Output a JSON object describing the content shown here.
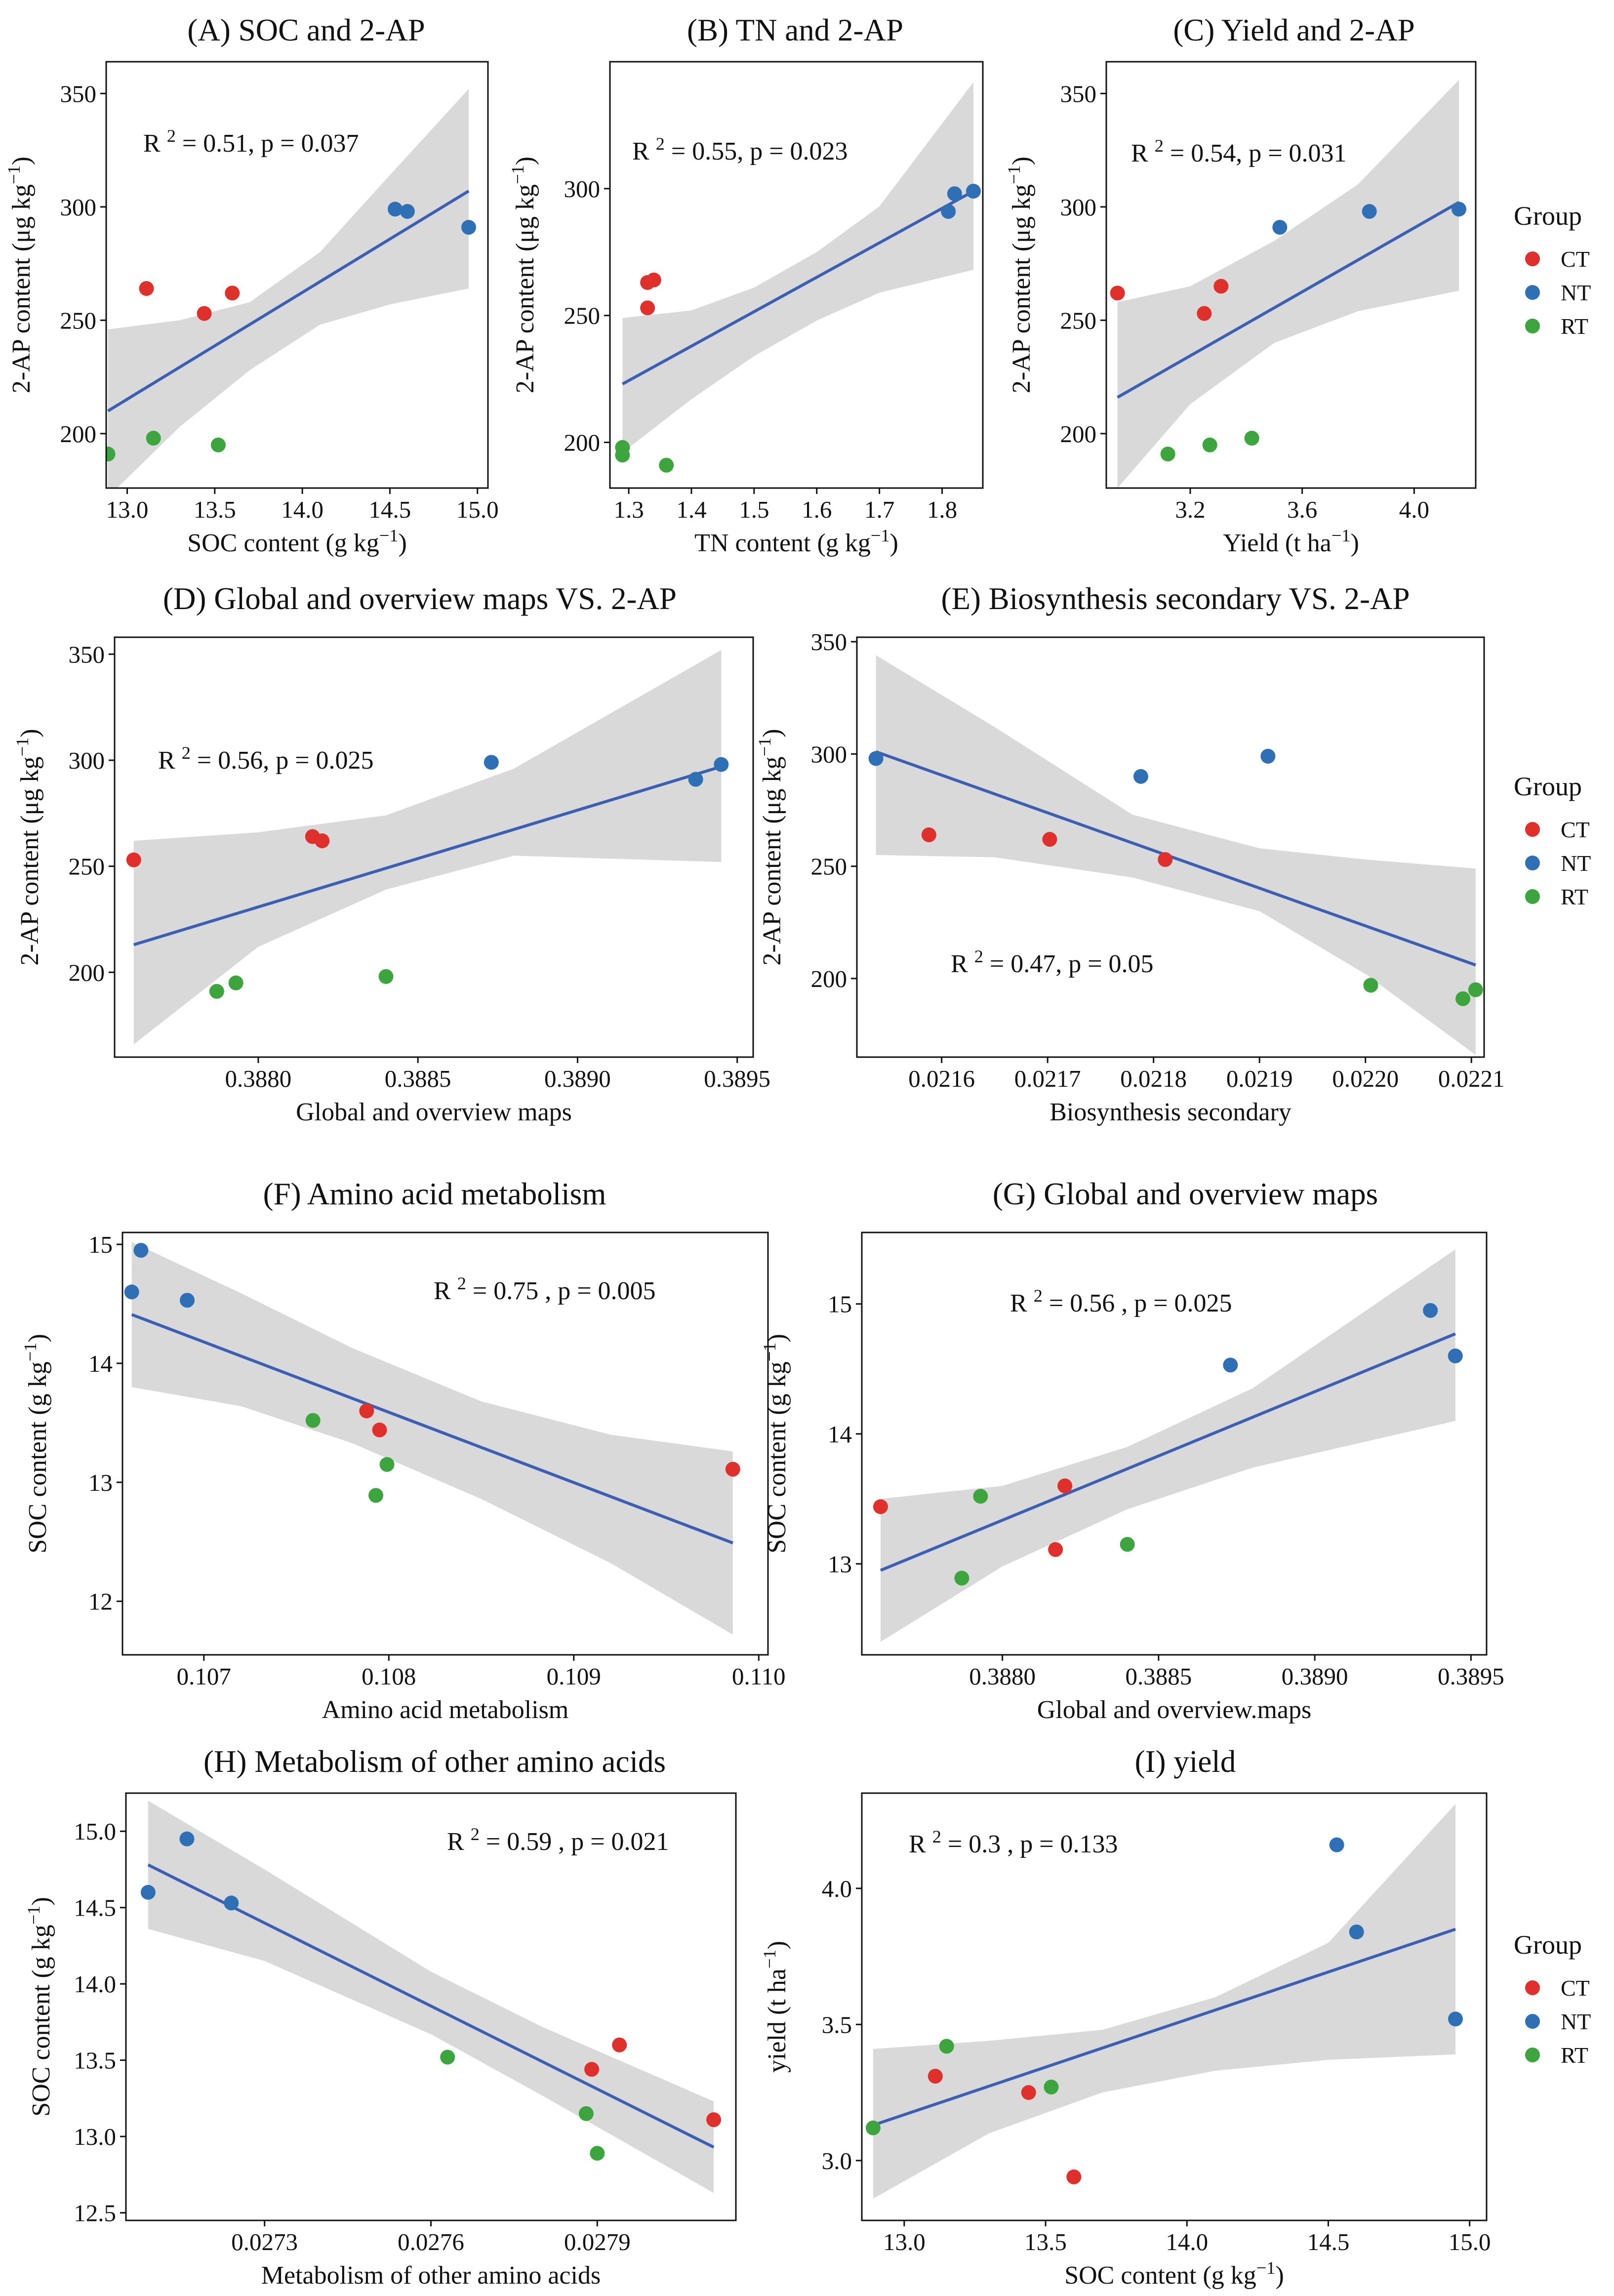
{
  "legend": {
    "title": "Group",
    "entries": [
      {
        "key": "CT",
        "label": "CT",
        "color": "#e0302b"
      },
      {
        "key": "NT",
        "label": "NT",
        "color": "#2f6fb5"
      },
      {
        "key": "RT",
        "label": "RT",
        "color": "#3da53d"
      }
    ]
  },
  "style": {
    "band_color": "#d9d9d9",
    "line_color": "#3b5fb4",
    "frame_color": "#111111"
  },
  "chart_data": [
    {
      "id": "A",
      "type": "scatter",
      "title": "(A) SOC and 2-AP",
      "xlabel": "SOC content (g kg⁻¹)",
      "ylabel": "2-AP content (μg kg⁻¹)",
      "xlim": [
        12.88,
        15.06
      ],
      "ylim": [
        176,
        364
      ],
      "xticks": [
        13.0,
        13.5,
        14.0,
        14.5,
        15.0
      ],
      "xtick_labels": [
        "13.0",
        "13.5",
        "14.0",
        "14.5",
        "15.0"
      ],
      "yticks": [
        200,
        250,
        300,
        350
      ],
      "ytick_labels": [
        "200",
        "250",
        "300",
        "350"
      ],
      "stats": "R² = 0.51,  p = 0.037",
      "points": [
        {
          "x": 13.11,
          "y": 264,
          "group": "CT"
        },
        {
          "x": 13.44,
          "y": 253,
          "group": "CT"
        },
        {
          "x": 13.6,
          "y": 262,
          "group": "CT"
        },
        {
          "x": 14.53,
          "y": 299,
          "group": "NT"
        },
        {
          "x": 14.6,
          "y": 298,
          "group": "NT"
        },
        {
          "x": 14.95,
          "y": 291,
          "group": "NT"
        },
        {
          "x": 12.89,
          "y": 191,
          "group": "RT"
        },
        {
          "x": 13.15,
          "y": 198,
          "group": "RT"
        },
        {
          "x": 13.52,
          "y": 195,
          "group": "RT"
        }
      ],
      "fit": {
        "x": [
          12.89,
          14.95
        ],
        "y": [
          210,
          307
        ]
      },
      "band": {
        "x": [
          12.89,
          13.3,
          13.7,
          14.1,
          14.5,
          14.95
        ],
        "lower": [
          172,
          203,
          228,
          248,
          257,
          264
        ],
        "upper": [
          246,
          250,
          258,
          280,
          314,
          352
        ]
      }
    },
    {
      "id": "B",
      "type": "scatter",
      "title": "(B) TN and 2-AP",
      "xlabel": "TN content (g kg⁻¹)",
      "ylabel": "2-AP content (μg kg⁻¹)",
      "xlim": [
        1.27,
        1.865
      ],
      "ylim": [
        182,
        350
      ],
      "xticks": [
        1.3,
        1.4,
        1.5,
        1.6,
        1.7,
        1.8
      ],
      "xtick_labels": [
        "1.3",
        "1.4",
        "1.5",
        "1.6",
        "1.7",
        "1.8"
      ],
      "yticks": [
        200,
        250,
        300
      ],
      "ytick_labels": [
        "200",
        "250",
        "300"
      ],
      "stats": "R² = 0.55,  p = 0.023",
      "points": [
        {
          "x": 1.33,
          "y": 263,
          "group": "CT"
        },
        {
          "x": 1.34,
          "y": 264,
          "group": "CT"
        },
        {
          "x": 1.33,
          "y": 253,
          "group": "CT"
        },
        {
          "x": 1.82,
          "y": 298,
          "group": "NT"
        },
        {
          "x": 1.81,
          "y": 291,
          "group": "NT"
        },
        {
          "x": 1.85,
          "y": 299,
          "group": "NT"
        },
        {
          "x": 1.29,
          "y": 198,
          "group": "RT"
        },
        {
          "x": 1.29,
          "y": 195,
          "group": "RT"
        },
        {
          "x": 1.36,
          "y": 191,
          "group": "RT"
        }
      ],
      "fit": {
        "x": [
          1.29,
          1.85
        ],
        "y": [
          223,
          299
        ]
      },
      "band": {
        "x": [
          1.29,
          1.4,
          1.5,
          1.6,
          1.7,
          1.85
        ],
        "lower": [
          196,
          217,
          234,
          248,
          259,
          268
        ],
        "upper": [
          249,
          252,
          261,
          275,
          293,
          342
        ]
      }
    },
    {
      "id": "C",
      "type": "scatter",
      "title": "(C) Yield and 2-AP",
      "xlabel": "Yield (t ha⁻¹)",
      "ylabel": "2-AP content (μg kg⁻¹)",
      "xlim": [
        2.9,
        4.22
      ],
      "ylim": [
        176,
        364
      ],
      "xticks": [
        3.2,
        3.6,
        4.0
      ],
      "xtick_labels": [
        "3.2",
        "3.6",
        "4.0"
      ],
      "yticks": [
        200,
        250,
        300,
        350
      ],
      "ytick_labels": [
        "200",
        "250",
        "300",
        "350"
      ],
      "stats": "R² = 0.54,  p = 0.031",
      "points": [
        {
          "x": 2.94,
          "y": 262,
          "group": "CT"
        },
        {
          "x": 3.25,
          "y": 253,
          "group": "CT"
        },
        {
          "x": 3.31,
          "y": 265,
          "group": "CT"
        },
        {
          "x": 3.52,
          "y": 291,
          "group": "NT"
        },
        {
          "x": 3.84,
          "y": 298,
          "group": "NT"
        },
        {
          "x": 4.16,
          "y": 299,
          "group": "NT"
        },
        {
          "x": 3.12,
          "y": 191,
          "group": "RT"
        },
        {
          "x": 3.27,
          "y": 195,
          "group": "RT"
        },
        {
          "x": 3.42,
          "y": 198,
          "group": "RT"
        }
      ],
      "fit": {
        "x": [
          2.94,
          4.16
        ],
        "y": [
          216,
          302
        ]
      },
      "band": {
        "x": [
          2.94,
          3.2,
          3.5,
          3.8,
          4.16
        ],
        "lower": [
          176,
          213,
          240,
          254,
          263
        ],
        "upper": [
          258,
          265,
          285,
          310,
          356
        ]
      }
    },
    {
      "id": "D",
      "type": "scatter",
      "title": "(D) Global and overview maps VS. 2-AP",
      "xlabel": "Global and overview maps",
      "ylabel": "2-AP content (μg kg⁻¹)",
      "xlim": [
        0.38755,
        0.38955
      ],
      "ylim": [
        160,
        358
      ],
      "xticks": [
        0.388,
        0.3885,
        0.389,
        0.3895
      ],
      "xtick_labels": [
        "0.3880",
        "0.3885",
        "0.3890",
        "0.3895"
      ],
      "yticks": [
        200,
        250,
        300,
        350
      ],
      "ytick_labels": [
        "200",
        "250",
        "300",
        "350"
      ],
      "stats": "R² = 0.56,  p = 0.025",
      "points": [
        {
          "x": 0.38761,
          "y": 253,
          "group": "CT"
        },
        {
          "x": 0.38817,
          "y": 264,
          "group": "CT"
        },
        {
          "x": 0.3882,
          "y": 262,
          "group": "CT"
        },
        {
          "x": 0.38873,
          "y": 299,
          "group": "NT"
        },
        {
          "x": 0.38937,
          "y": 291,
          "group": "NT"
        },
        {
          "x": 0.38945,
          "y": 298,
          "group": "NT"
        },
        {
          "x": 0.38787,
          "y": 191,
          "group": "RT"
        },
        {
          "x": 0.38793,
          "y": 195,
          "group": "RT"
        },
        {
          "x": 0.3884,
          "y": 198,
          "group": "RT"
        }
      ],
      "fit": {
        "x": [
          0.38761,
          0.38945
        ],
        "y": [
          213,
          297
        ]
      },
      "band": {
        "x": [
          0.38761,
          0.388,
          0.3884,
          0.3888,
          0.38945
        ],
        "lower": [
          166,
          212,
          239,
          255,
          252
        ],
        "upper": [
          262,
          266,
          274,
          296,
          352
        ]
      }
    },
    {
      "id": "E",
      "type": "scatter",
      "title": "(E) Biosynthesis secondary VS. 2-AP",
      "xlabel": "Biosynthesis secondary",
      "ylabel": "2-AP content (μg kg⁻¹)",
      "xlim": [
        0.02152,
        0.022112
      ],
      "ylim": [
        165,
        352
      ],
      "xticks": [
        0.0216,
        0.0217,
        0.0218,
        0.0219,
        0.022,
        0.0221
      ],
      "xtick_labels": [
        "0.0216",
        "0.0217",
        "0.0218",
        "0.0219",
        "0.0220",
        "0.0221"
      ],
      "yticks": [
        200,
        250,
        300,
        350
      ],
      "ytick_labels": [
        "200",
        "250",
        "300",
        "350"
      ],
      "stats": "R² = 0.47,  p = 0.05",
      "points": [
        {
          "x": 0.021588,
          "y": 264,
          "group": "CT"
        },
        {
          "x": 0.021702,
          "y": 262,
          "group": "CT"
        },
        {
          "x": 0.021811,
          "y": 253,
          "group": "CT"
        },
        {
          "x": 0.021788,
          "y": 290,
          "group": "NT"
        },
        {
          "x": 0.021908,
          "y": 299,
          "group": "NT"
        },
        {
          "x": 0.021538,
          "y": 298,
          "group": "NT"
        },
        {
          "x": 0.022005,
          "y": 197,
          "group": "RT"
        },
        {
          "x": 0.022092,
          "y": 191,
          "group": "RT"
        },
        {
          "x": 0.022104,
          "y": 195,
          "group": "RT"
        }
      ],
      "fit": {
        "x": [
          0.021538,
          0.022104
        ],
        "y": [
          301,
          206
        ]
      },
      "band": {
        "x": [
          0.021538,
          0.02165,
          0.02178,
          0.0219,
          0.022,
          0.022104
        ],
        "lower": [
          255,
          254,
          245,
          230,
          202,
          166
        ],
        "upper": [
          344,
          312,
          273,
          258,
          253,
          249
        ]
      }
    },
    {
      "id": "F",
      "type": "scatter",
      "title": "(F) Amino acid metabolism",
      "xlabel": "Amino acid metabolism",
      "ylabel": "SOC content (g kg⁻¹)",
      "xlim": [
        0.10656,
        0.11005
      ],
      "ylim": [
        11.55,
        15.1
      ],
      "xticks": [
        0.107,
        0.108,
        0.109,
        0.11
      ],
      "xtick_labels": [
        "0.107",
        "0.108",
        "0.109",
        "0.110"
      ],
      "yticks": [
        12,
        13,
        14,
        15
      ],
      "ytick_labels": [
        "12",
        "13",
        "14",
        "15"
      ],
      "stats": "R² = 0.75 , p = 0.005",
      "points": [
        {
          "x": 0.10788,
          "y": 13.6,
          "group": "CT"
        },
        {
          "x": 0.10795,
          "y": 13.44,
          "group": "CT"
        },
        {
          "x": 0.10986,
          "y": 13.11,
          "group": "CT"
        },
        {
          "x": 0.10661,
          "y": 14.6,
          "group": "NT"
        },
        {
          "x": 0.10666,
          "y": 14.95,
          "group": "NT"
        },
        {
          "x": 0.10691,
          "y": 14.53,
          "group": "NT"
        },
        {
          "x": 0.10759,
          "y": 13.52,
          "group": "RT"
        },
        {
          "x": 0.10793,
          "y": 12.89,
          "group": "RT"
        },
        {
          "x": 0.10799,
          "y": 13.15,
          "group": "RT"
        }
      ],
      "fit": {
        "x": [
          0.10661,
          0.10986
        ],
        "y": [
          14.41,
          12.49
        ]
      },
      "band": {
        "x": [
          0.10661,
          0.1072,
          0.1078,
          0.1085,
          0.1092,
          0.10986
        ],
        "lower": [
          13.8,
          13.64,
          13.33,
          12.86,
          12.32,
          11.72
        ],
        "upper": [
          15.02,
          14.59,
          14.13,
          13.68,
          13.4,
          13.26
        ]
      }
    },
    {
      "id": "G",
      "type": "scatter",
      "title": "(G) Global and overview maps",
      "xlabel": "Global and overview.maps",
      "ylabel": "SOC content (g kg⁻¹)",
      "xlim": [
        0.38755,
        0.38955
      ],
      "ylim": [
        12.3,
        15.55
      ],
      "xticks": [
        0.388,
        0.3885,
        0.389,
        0.3895
      ],
      "xtick_labels": [
        "0.3880",
        "0.3885",
        "0.3890",
        "0.3895"
      ],
      "yticks": [
        13,
        14,
        15
      ],
      "ytick_labels": [
        "13",
        "14",
        "15"
      ],
      "stats": "R² = 0.56 , p = 0.025",
      "points": [
        {
          "x": 0.38761,
          "y": 13.44,
          "group": "CT"
        },
        {
          "x": 0.38817,
          "y": 13.11,
          "group": "CT"
        },
        {
          "x": 0.3882,
          "y": 13.6,
          "group": "CT"
        },
        {
          "x": 0.38873,
          "y": 14.53,
          "group": "NT"
        },
        {
          "x": 0.38937,
          "y": 14.95,
          "group": "NT"
        },
        {
          "x": 0.38945,
          "y": 14.6,
          "group": "NT"
        },
        {
          "x": 0.38787,
          "y": 12.89,
          "group": "RT"
        },
        {
          "x": 0.38793,
          "y": 13.52,
          "group": "RT"
        },
        {
          "x": 0.3884,
          "y": 13.15,
          "group": "RT"
        }
      ],
      "fit": {
        "x": [
          0.38761,
          0.38945
        ],
        "y": [
          12.95,
          14.77
        ]
      },
      "band": {
        "x": [
          0.38761,
          0.388,
          0.3884,
          0.3888,
          0.38945
        ],
        "lower": [
          12.4,
          12.98,
          13.42,
          13.74,
          14.1
        ],
        "upper": [
          13.5,
          13.6,
          13.9,
          14.35,
          15.42
        ]
      }
    },
    {
      "id": "H",
      "type": "scatter",
      "title": "(H) Metabolism of other amino acids",
      "xlabel": "Metabolism of other amino acids",
      "ylabel": "SOC content (g kg⁻¹)",
      "xlim": [
        0.02705,
        0.02815
      ],
      "ylim": [
        12.45,
        15.25
      ],
      "xticks": [
        0.0273,
        0.0276,
        0.0279
      ],
      "xtick_labels": [
        "0.0273",
        "0.0276",
        "0.0279"
      ],
      "yticks": [
        12.5,
        13.0,
        13.5,
        14.0,
        14.5,
        15.0
      ],
      "ytick_labels": [
        "12.5",
        "13.0",
        "13.5",
        "14.0",
        "14.5",
        "15.0"
      ],
      "stats": "R² = 0.59 , p = 0.021",
      "points": [
        {
          "x": 0.02789,
          "y": 13.44,
          "group": "CT"
        },
        {
          "x": 0.02794,
          "y": 13.6,
          "group": "CT"
        },
        {
          "x": 0.02811,
          "y": 13.11,
          "group": "CT"
        },
        {
          "x": 0.02709,
          "y": 14.6,
          "group": "NT"
        },
        {
          "x": 0.02716,
          "y": 14.95,
          "group": "NT"
        },
        {
          "x": 0.02724,
          "y": 14.53,
          "group": "NT"
        },
        {
          "x": 0.02763,
          "y": 13.52,
          "group": "RT"
        },
        {
          "x": 0.02788,
          "y": 13.15,
          "group": "RT"
        },
        {
          "x": 0.0279,
          "y": 12.89,
          "group": "RT"
        }
      ],
      "fit": {
        "x": [
          0.02709,
          0.02811
        ],
        "y": [
          14.78,
          12.93
        ]
      },
      "band": {
        "x": [
          0.02709,
          0.0273,
          0.0276,
          0.0278,
          0.02811
        ],
        "lower": [
          14.36,
          14.15,
          13.67,
          13.27,
          12.63
        ],
        "upper": [
          15.2,
          14.75,
          14.08,
          13.72,
          13.23
        ]
      }
    },
    {
      "id": "I",
      "type": "scatter",
      "title": "(I) yield",
      "xlabel": "SOC content (g kg⁻¹)",
      "ylabel": "yield (t ha⁻¹)",
      "xlim": [
        12.85,
        15.06
      ],
      "ylim": [
        2.78,
        4.35
      ],
      "xticks": [
        13.0,
        13.5,
        14.0,
        14.5,
        15.0
      ],
      "xtick_labels": [
        "13.0",
        "13.5",
        "14.0",
        "14.5",
        "15.0"
      ],
      "yticks": [
        3.0,
        3.5,
        4.0
      ],
      "ytick_labels": [
        "3.0",
        "3.5",
        "4.0"
      ],
      "stats": "R² = 0.3 , p = 0.133",
      "points": [
        {
          "x": 13.11,
          "y": 3.31,
          "group": "CT"
        },
        {
          "x": 13.44,
          "y": 3.25,
          "group": "CT"
        },
        {
          "x": 13.6,
          "y": 2.94,
          "group": "CT"
        },
        {
          "x": 14.53,
          "y": 4.16,
          "group": "NT"
        },
        {
          "x": 14.6,
          "y": 3.84,
          "group": "NT"
        },
        {
          "x": 14.95,
          "y": 3.52,
          "group": "NT"
        },
        {
          "x": 12.89,
          "y": 3.12,
          "group": "RT"
        },
        {
          "x": 13.15,
          "y": 3.42,
          "group": "RT"
        },
        {
          "x": 13.52,
          "y": 3.27,
          "group": "RT"
        }
      ],
      "fit": {
        "x": [
          12.89,
          14.95
        ],
        "y": [
          3.13,
          3.85
        ]
      },
      "band": {
        "x": [
          12.89,
          13.3,
          13.7,
          14.1,
          14.5,
          14.95
        ],
        "lower": [
          2.86,
          3.1,
          3.25,
          3.33,
          3.37,
          3.39
        ],
        "upper": [
          3.41,
          3.44,
          3.48,
          3.6,
          3.8,
          4.31
        ]
      }
    }
  ]
}
